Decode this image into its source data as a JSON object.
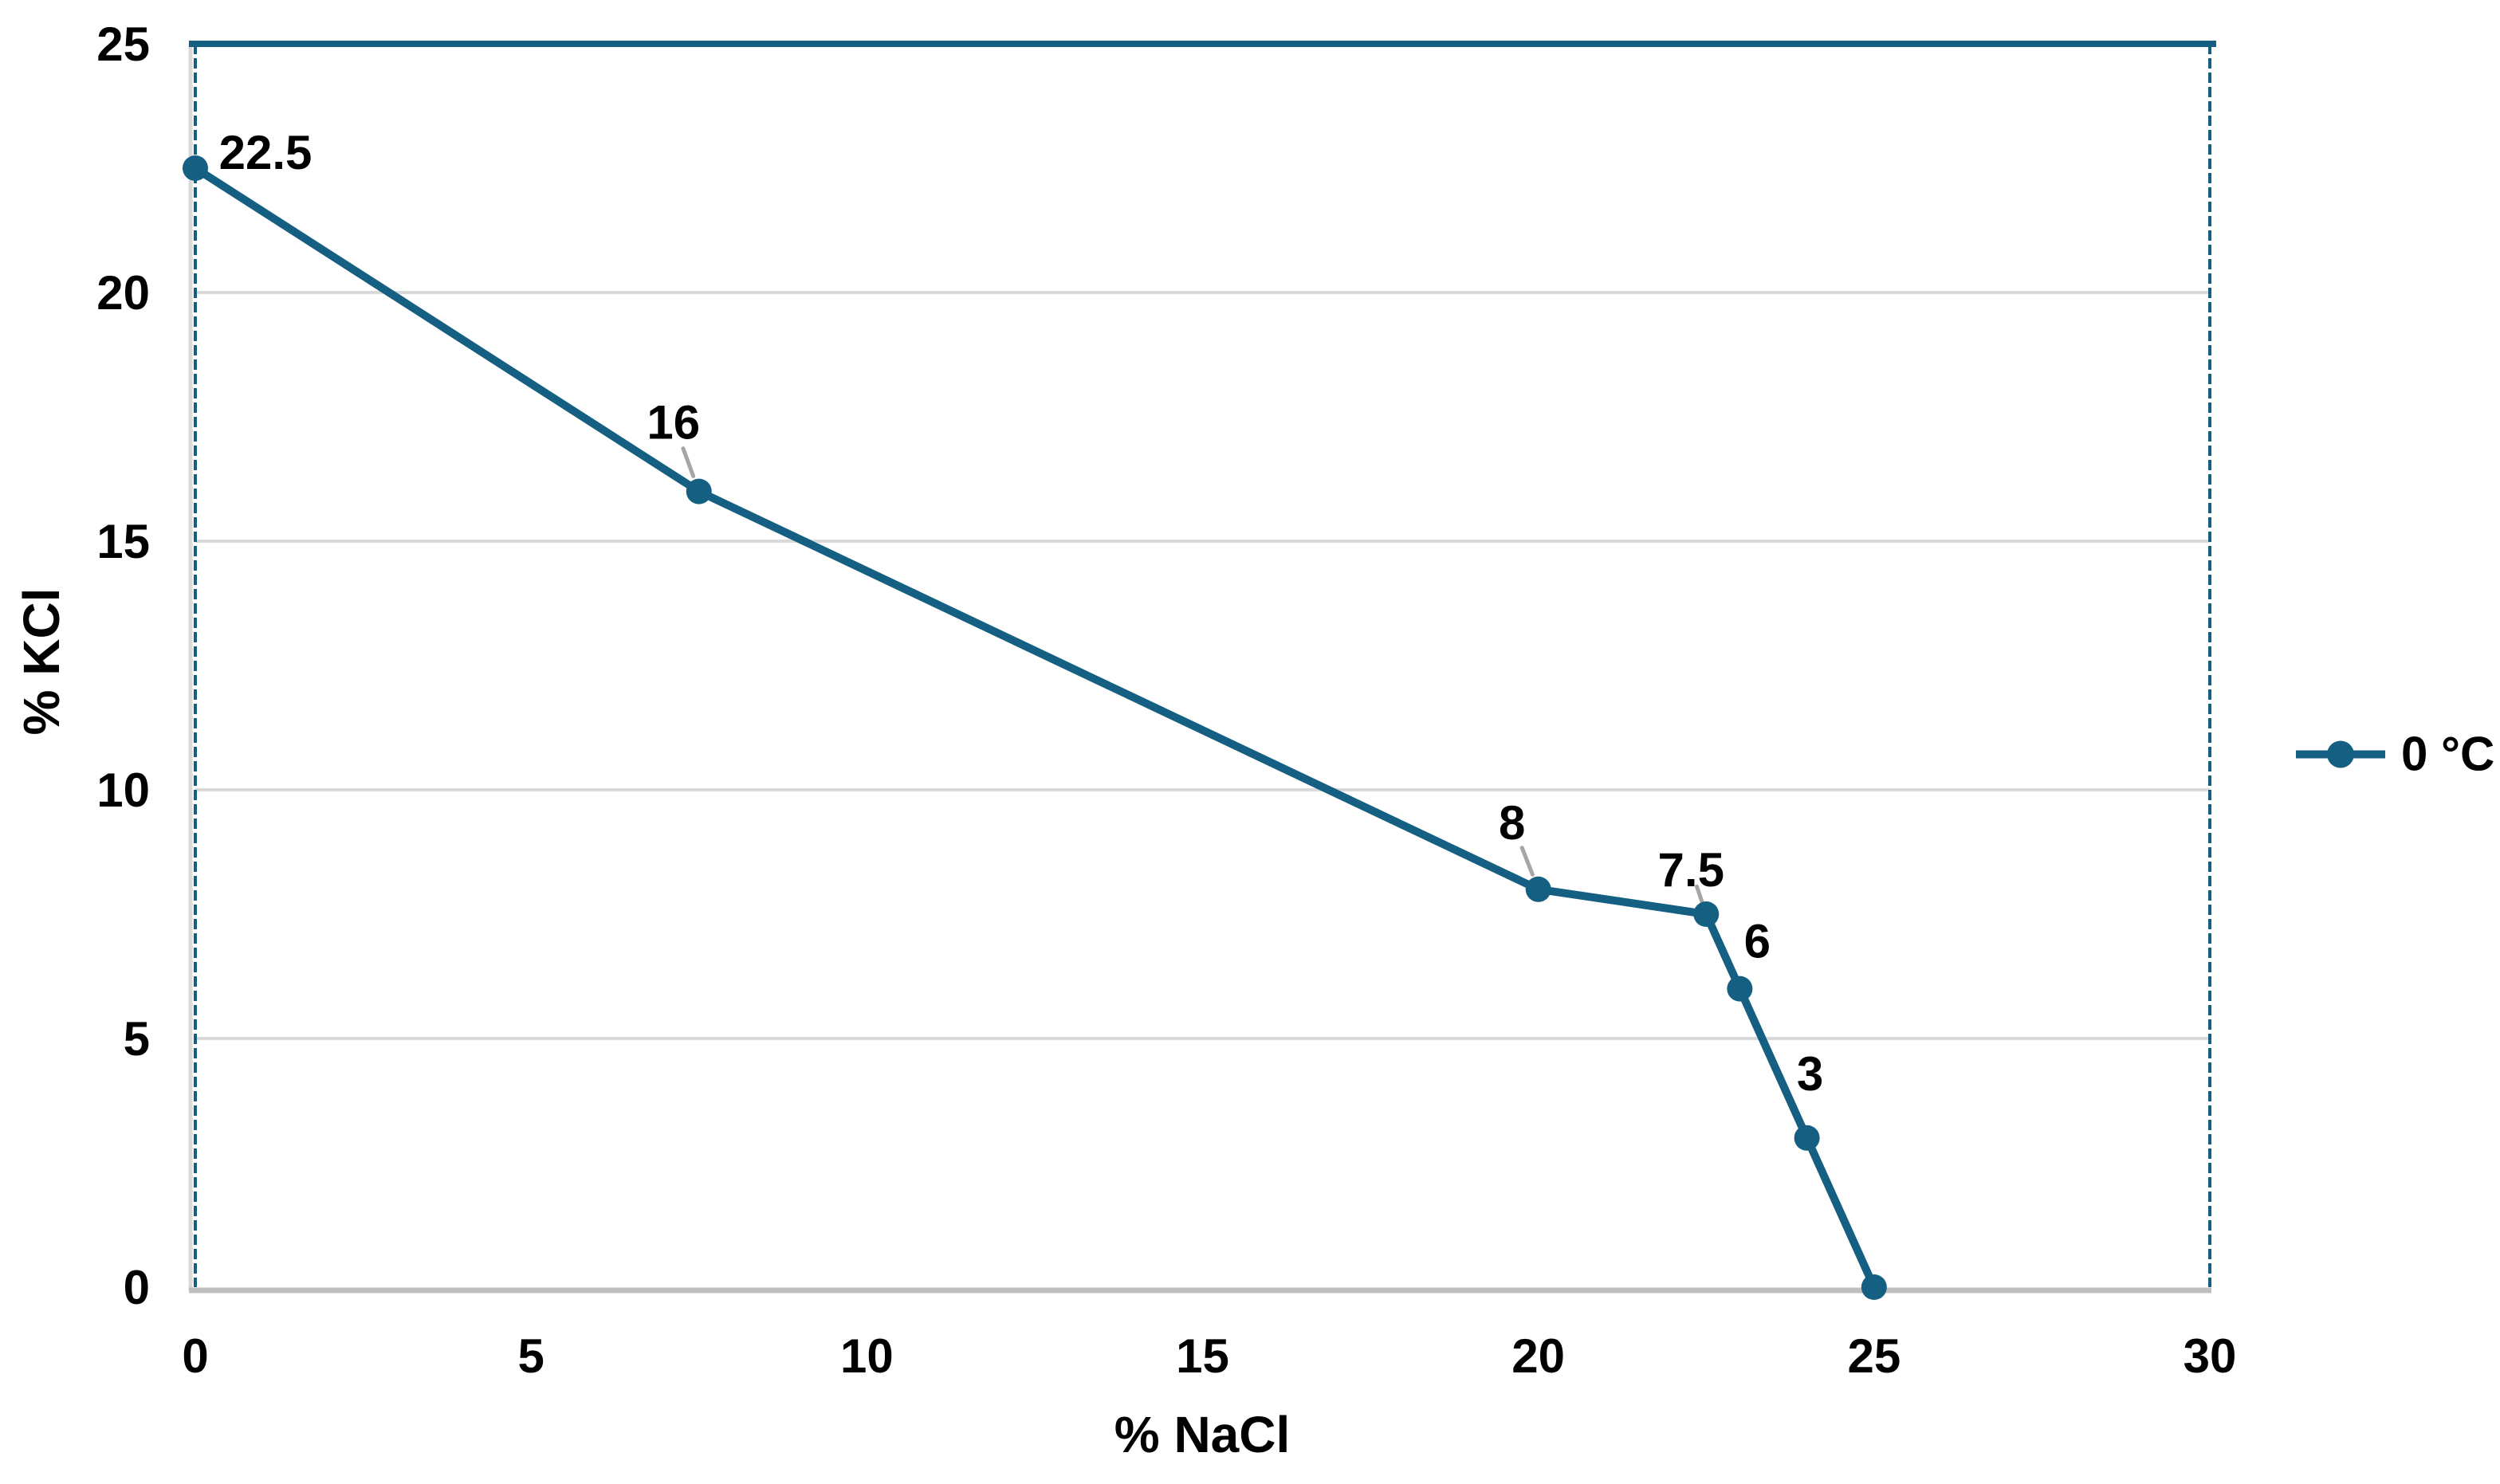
{
  "chart_data": {
    "type": "line",
    "title": "",
    "xlabel": "% NaCl",
    "ylabel": "% KCl",
    "xlim": [
      0,
      30
    ],
    "ylim": [
      0,
      25
    ],
    "xticks": [
      0,
      5,
      10,
      15,
      20,
      25,
      30
    ],
    "yticks": [
      0,
      5,
      10,
      15,
      20,
      25
    ],
    "grid": "horizontal",
    "legend": {
      "position": "right",
      "label": "0 °C"
    },
    "series": [
      {
        "name": "0 °C",
        "points": [
          {
            "x": 0,
            "y": 22.5,
            "label": "22.5",
            "label_dx": 88,
            "label_dy": -20,
            "leader": false
          },
          {
            "x": 7.5,
            "y": 16,
            "label": "16",
            "label_dx": -32,
            "label_dy": -87,
            "leader": true
          },
          {
            "x": 20,
            "y": 8,
            "label": "8",
            "label_dx": -33,
            "label_dy": -84,
            "leader": true
          },
          {
            "x": 22.5,
            "y": 7.5,
            "label": "7.5",
            "label_dx": -19,
            "label_dy": -56,
            "leader": true
          },
          {
            "x": 23,
            "y": 6,
            "label": "6",
            "label_dx": 22,
            "label_dy": -60,
            "leader": false
          },
          {
            "x": 24,
            "y": 3,
            "label": "3",
            "label_dx": 4,
            "label_dy": -81,
            "leader": false
          },
          {
            "x": 25,
            "y": 0,
            "label": "",
            "label_dx": 0,
            "label_dy": 0,
            "leader": false
          }
        ]
      }
    ],
    "colors": {
      "series": "#156082",
      "gridline": "#D9D9D9",
      "axis_line": "#BFBFBF",
      "leader": "#A6A6A6",
      "text": "#000000",
      "background": "#FFFFFF"
    }
  }
}
